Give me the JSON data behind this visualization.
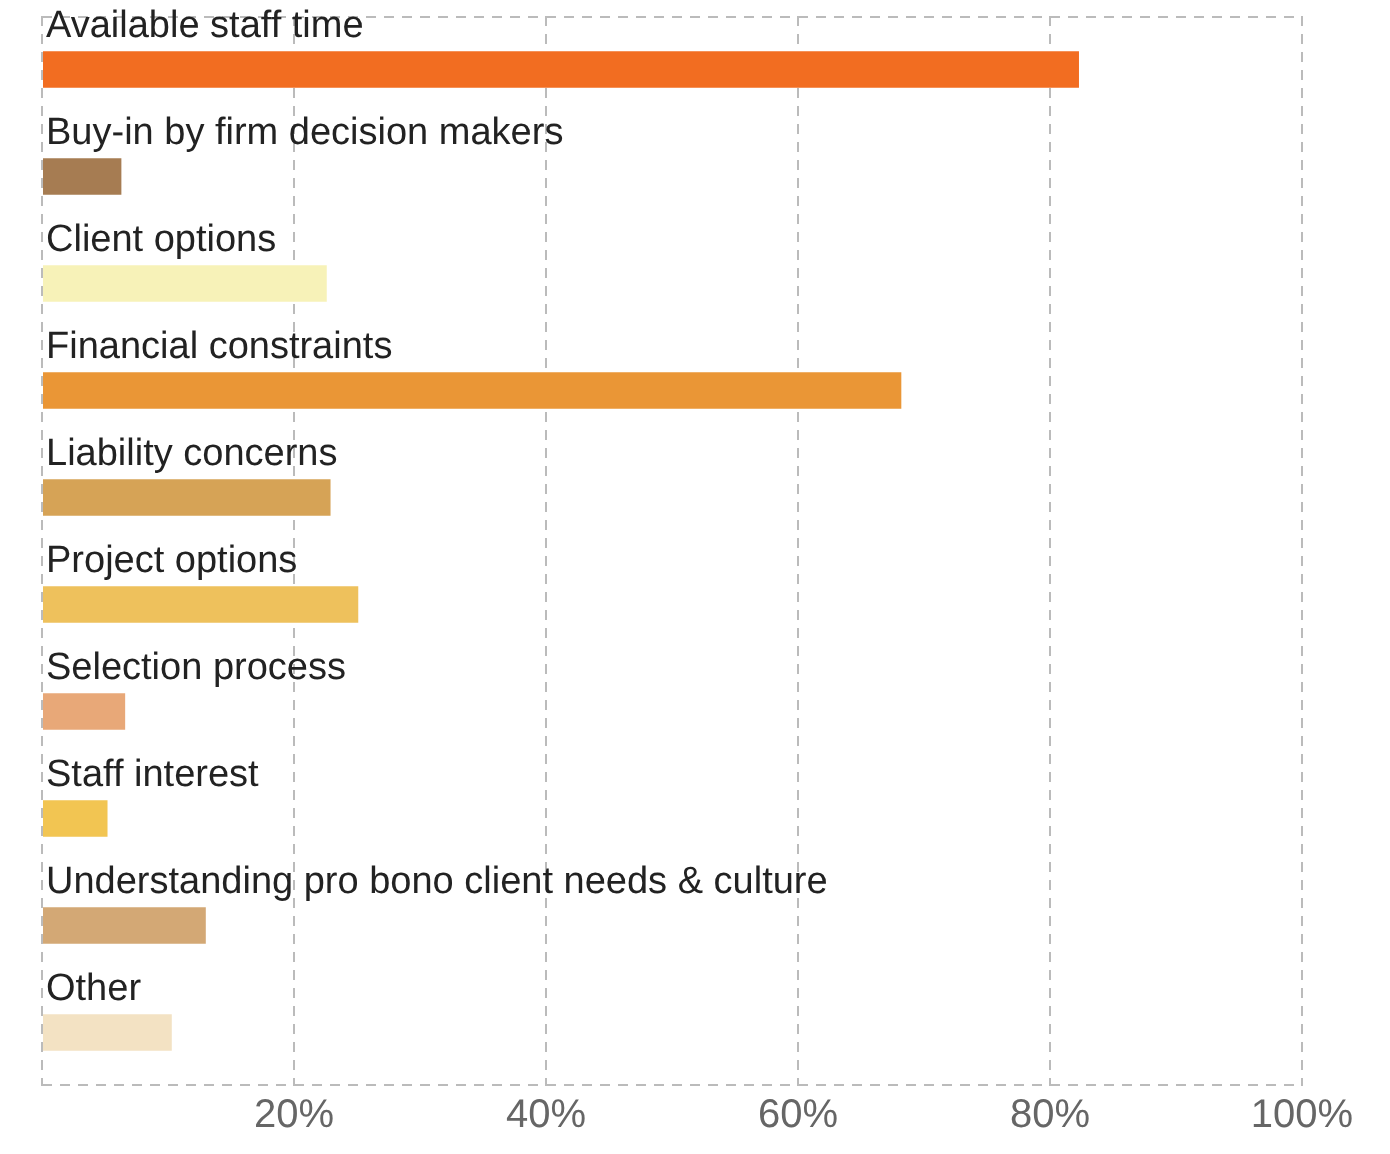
{
  "chart_data": {
    "type": "bar",
    "orientation": "horizontal",
    "categories": [
      "Available staff time",
      "Buy-in by firm decision makers",
      "Client options",
      "Financial constraints",
      "Liability concerns",
      "Project options",
      "Selection process",
      "Staff interest",
      "Understanding pro bono client needs & culture",
      "Other"
    ],
    "values": [
      82.3,
      6.3,
      22.6,
      68.2,
      22.9,
      25.1,
      6.6,
      5.2,
      13.0,
      10.3
    ],
    "colors": [
      "#f26d21",
      "#a67c52",
      "#f7f2b8",
      "#ea9636",
      "#d6a356",
      "#eec15c",
      "#e8a878",
      "#f2c552",
      "#d3a875",
      "#f3e2c3"
    ],
    "xlim": [
      0,
      100
    ],
    "xticks": [
      {
        "value": 0,
        "label": null
      },
      {
        "value": 20,
        "label": "20%"
      },
      {
        "value": 40,
        "label": "40%"
      },
      {
        "value": 60,
        "label": "60%"
      },
      {
        "value": 80,
        "label": "80%"
      },
      {
        "value": 100,
        "label": "100%"
      }
    ],
    "grid": "x"
  }
}
